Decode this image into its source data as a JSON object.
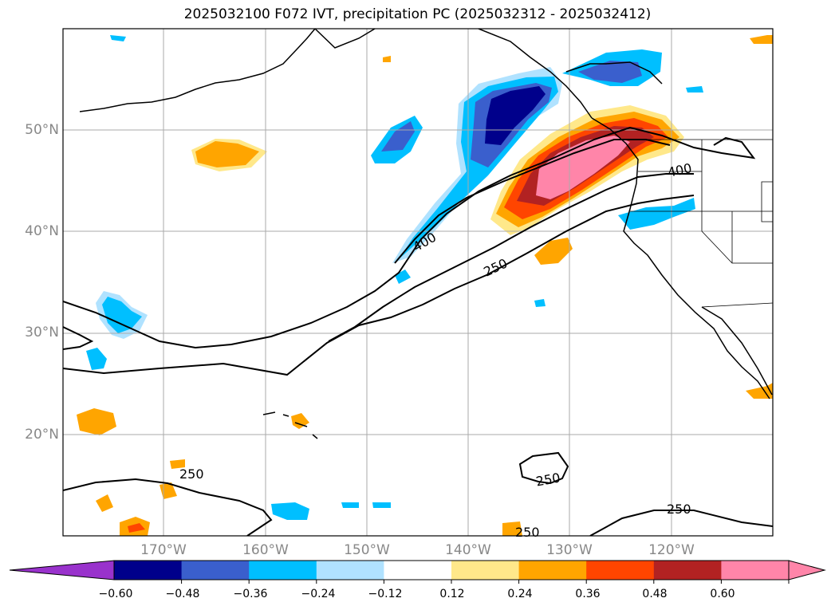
{
  "title": "2025032100 F072 IVT, precipitation PC (2025032312 - 2025032412)",
  "lat_labels": [
    "50°N",
    "40°N",
    "30°N",
    "20°N"
  ],
  "lon_labels": [
    "170°W",
    "160°W",
    "150°W",
    "140°W",
    "130°W",
    "120°W"
  ],
  "contour_labels": [
    "400",
    "400",
    "250",
    "250",
    "250",
    "250",
    "250"
  ],
  "colorbar": {
    "ticks": [
      "−0.60",
      "−0.48",
      "−0.36",
      "−0.24",
      "−0.12",
      "0.12",
      "0.24",
      "0.36",
      "0.48",
      "0.60"
    ],
    "colors": [
      "#9932cc",
      "#00008b",
      "#3a5fcd",
      "#00bfff",
      "#b0e2ff",
      "#ffffff",
      "#ffe88a",
      "#ffa500",
      "#ff4500",
      "#b22222",
      "#ff85a9"
    ]
  },
  "colors": {
    "neg_strong": "#00008b",
    "neg_mid": "#3a5fcd",
    "neg": "#00bfff",
    "neg_light": "#b0e2ff",
    "pos_light": "#ffe88a",
    "pos": "#ffa500",
    "pos_mid": "#ff4500",
    "pos_strong": "#b22222",
    "pos_max": "#ff85a9"
  }
}
